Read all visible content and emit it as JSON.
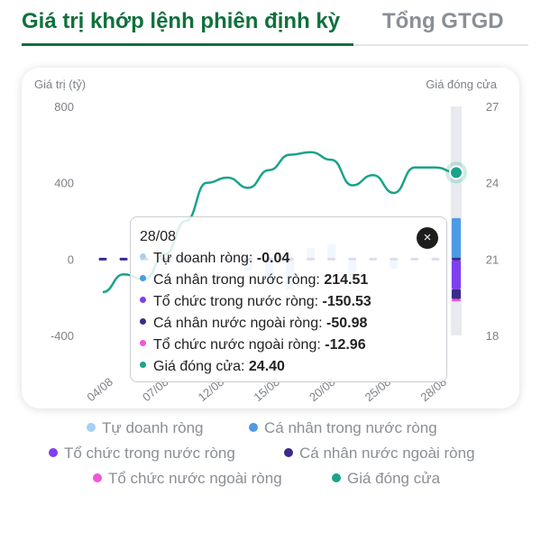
{
  "tabs": {
    "active": "Giá trị khớp lệnh phiên định kỳ",
    "inactive": "Tổng GTGD"
  },
  "chart_data": {
    "type": "bar+line",
    "left_axis_label": "Giá trị (tỷ)",
    "right_axis_label": "Giá đóng cửa",
    "left_ticks": [
      "800",
      "400",
      "0",
      "-400"
    ],
    "right_ticks": [
      "27",
      "24",
      "21",
      "18"
    ],
    "ylim_left": [
      -400,
      800
    ],
    "ylim_right": [
      18,
      27
    ],
    "x_tick_labels": [
      "04/08",
      "07/08",
      "12/08",
      "15/08",
      "20/08",
      "25/08",
      "28/08"
    ],
    "series": [
      {
        "name": "Tự doanh ròng",
        "color": "#a6d0f3",
        "values": [
          0,
          0,
          0,
          0,
          0,
          0,
          0,
          -60,
          -120,
          -160,
          60,
          80,
          -100,
          0,
          -50,
          0,
          0,
          -0.04
        ]
      },
      {
        "name": "Cá nhân trong nước ròng",
        "color": "#4d9ae6",
        "values": [
          0,
          0,
          0,
          0,
          0,
          0,
          0,
          0,
          0,
          0,
          0,
          0,
          0,
          0,
          0,
          0,
          0,
          214.51
        ]
      },
      {
        "name": "Tổ chức trong nước ròng",
        "color": "#7f3ff0",
        "values": [
          0,
          0,
          0,
          0,
          0,
          0,
          0,
          0,
          0,
          0,
          0,
          0,
          0,
          0,
          0,
          0,
          0,
          -150.53
        ]
      },
      {
        "name": "Cá nhân nước ngoài ròng",
        "color": "#3c2a8c",
        "values": [
          0,
          0,
          0,
          0,
          0,
          0,
          0,
          0,
          0,
          0,
          0,
          0,
          0,
          0,
          0,
          0,
          0,
          -50.98
        ]
      },
      {
        "name": "Tổ chức nước ngoài ròng",
        "color": "#f055dc",
        "values": [
          0,
          0,
          0,
          0,
          0,
          0,
          0,
          0,
          0,
          0,
          0,
          0,
          0,
          0,
          0,
          0,
          0,
          -12.96
        ]
      }
    ],
    "close_price": [
      19.7,
      20.4,
      20.2,
      21.2,
      22.5,
      24.0,
      24.2,
      23.8,
      24.5,
      25.1,
      25.2,
      24.9,
      23.9,
      24.3,
      23.6,
      24.6,
      24.6,
      24.4
    ],
    "grid": false,
    "legend_position": "bottom"
  },
  "tooltip": {
    "date": "28/08",
    "close_symbol": "×",
    "rows": [
      {
        "label": "Tự doanh ròng: ",
        "value": "-0.04",
        "color": "#a6d0f3"
      },
      {
        "label": "Cá nhân trong nước ròng: ",
        "value": "214.51",
        "color": "#4d9ae6"
      },
      {
        "label": "Tổ chức trong nước ròng: ",
        "value": "-150.53",
        "color": "#7f3ff0"
      },
      {
        "label": "Cá nhân nước ngoài ròng: ",
        "value": "-50.98",
        "color": "#3c2a8c"
      },
      {
        "label": "Tổ chức nước ngoài ròng: ",
        "value": "-12.96",
        "color": "#f055dc"
      },
      {
        "label": "Giá đóng cửa: ",
        "value": "24.40",
        "color": "#1aa38a"
      }
    ]
  },
  "legend": [
    {
      "label": "Tự doanh ròng",
      "color": "#a6d0f3"
    },
    {
      "label": "Cá nhân trong nước ròng",
      "color": "#4d9ae6"
    },
    {
      "label": "Tổ chức trong nước ròng",
      "color": "#7f3ff0"
    },
    {
      "label": "Cá nhân nước ngoài ròng",
      "color": "#3c2a8c"
    },
    {
      "label": "Tổ chức nước ngoài ròng",
      "color": "#f055dc"
    },
    {
      "label": "Giá đóng cửa",
      "color": "#1aa38a"
    }
  ],
  "colors": {
    "brand": "#10703c",
    "price_line": "#1aa38a",
    "tab_inactive": "#8a8f96"
  }
}
